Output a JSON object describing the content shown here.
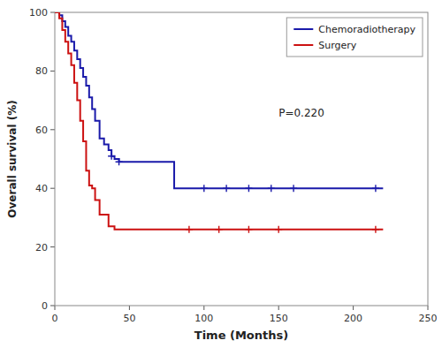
{
  "chart_data": {
    "type": "step",
    "xlabel": "Time (Months)",
    "ylabel": "Overall survival (%)",
    "xlim": [
      0,
      250
    ],
    "ylim": [
      0,
      100
    ],
    "xticks": [
      0,
      50,
      100,
      150,
      200,
      250
    ],
    "yticks": [
      0,
      20,
      40,
      60,
      80,
      100
    ],
    "grid": false,
    "legend": "upper right",
    "annotation": "P=0.220",
    "series": [
      {
        "name": "Chemoradiotherapy",
        "color": "#1a1aaa",
        "x": [
          0,
          3,
          5,
          7,
          9,
          11,
          13,
          15,
          17,
          19,
          21,
          23,
          25,
          27,
          30,
          33,
          36,
          38,
          40,
          43,
          46,
          50,
          75,
          80,
          100,
          215,
          220
        ],
        "values": [
          100,
          99,
          97,
          95,
          92,
          90,
          87,
          84,
          81,
          78,
          75,
          71,
          67,
          63,
          57,
          55,
          53,
          51,
          50,
          49,
          49,
          49,
          49,
          40,
          40,
          40,
          40
        ],
        "censor_x": [
          38,
          43,
          100,
          115,
          130,
          145,
          160,
          215
        ],
        "censor_values": [
          51,
          49,
          40,
          40,
          40,
          40,
          40,
          40
        ]
      },
      {
        "name": "Surgery",
        "color": "#cc1111",
        "x": [
          0,
          3,
          5,
          7,
          9,
          11,
          13,
          15,
          17,
          19,
          21,
          23,
          25,
          27,
          30,
          33,
          36,
          38,
          40,
          43,
          46,
          50,
          100,
          215,
          220
        ],
        "values": [
          100,
          98,
          94,
          90,
          86,
          82,
          76,
          70,
          63,
          56,
          46,
          41,
          40,
          36,
          31,
          31,
          27,
          27,
          26,
          26,
          26,
          26,
          26,
          26,
          26
        ],
        "censor_x": [
          90,
          110,
          130,
          150,
          215
        ],
        "censor_values": [
          26,
          26,
          26,
          26,
          26
        ]
      }
    ]
  }
}
